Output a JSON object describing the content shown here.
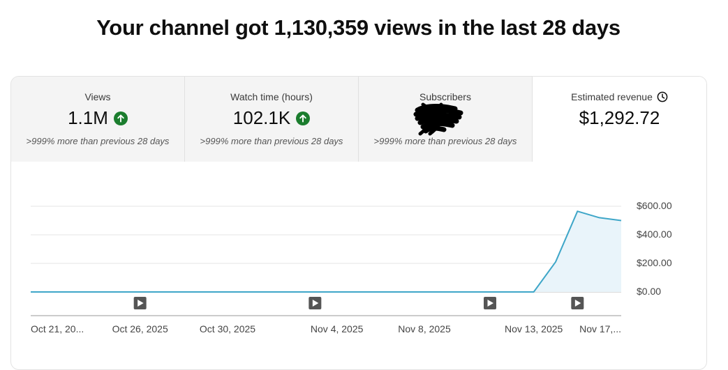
{
  "headline": "Your channel got 1,130,359 views in the last 28 days",
  "tabs": [
    {
      "label": "Views",
      "value": "1.1M",
      "trend_icon": "arrow-up-icon",
      "sub": ">999% more than previous 28 days"
    },
    {
      "label": "Watch time (hours)",
      "value": "102.1K",
      "trend_icon": "arrow-up-icon",
      "sub": ">999% more than previous 28 days"
    },
    {
      "label": "Subscribers",
      "value": "",
      "value_redacted": true,
      "trend_icon": "arrow-up-icon",
      "sub": ">999% more than previous 28 days"
    },
    {
      "label": "Estimated revenue",
      "value": "$1,292.72",
      "info_icon": "clock-icon",
      "active": true
    }
  ],
  "colors": {
    "line": "#3ea6c8",
    "fill": "#e9f4fa",
    "up_badge": "#1b7d2e",
    "tab_bg": "#f4f4f4",
    "shade": "#f0f0f0"
  },
  "chart_data": {
    "type": "area",
    "x": [
      "Oct 21",
      "Oct 22",
      "Oct 23",
      "Oct 24",
      "Oct 25",
      "Oct 26",
      "Oct 27",
      "Oct 28",
      "Oct 29",
      "Oct 30",
      "Oct 31",
      "Nov 1",
      "Nov 2",
      "Nov 3",
      "Nov 4",
      "Nov 5",
      "Nov 6",
      "Nov 7",
      "Nov 8",
      "Nov 9",
      "Nov 10",
      "Nov 11",
      "Nov 12",
      "Nov 13",
      "Nov 14",
      "Nov 15",
      "Nov 16",
      "Nov 17"
    ],
    "series": [
      {
        "values": [
          0,
          0,
          0,
          0,
          0,
          0,
          0,
          0,
          0,
          0,
          0,
          0,
          0,
          0,
          0,
          0,
          0,
          0,
          0,
          0,
          0,
          0,
          0,
          0,
          210,
          565,
          520,
          500
        ]
      }
    ],
    "x_tick_labels": [
      "Oct 21, 20...",
      "Oct 26, 2025",
      "Oct 30, 2025",
      "Nov 4, 2025",
      "Nov 8, 2025",
      "Nov 13, 2025",
      "Nov 17,..."
    ],
    "x_tick_indices": [
      0,
      5,
      9,
      14,
      18,
      23,
      27
    ],
    "y_tick_labels": [
      "$600.00",
      "$400.00",
      "$200.00",
      "$0.00"
    ],
    "y_tick_values": [
      600,
      400,
      200,
      0
    ],
    "ylim": [
      0,
      600
    ],
    "grid": true,
    "shaded_last_point": true,
    "video_markers": {
      "icon": "play-icon",
      "x_indices": [
        5,
        13,
        21,
        25
      ]
    }
  }
}
